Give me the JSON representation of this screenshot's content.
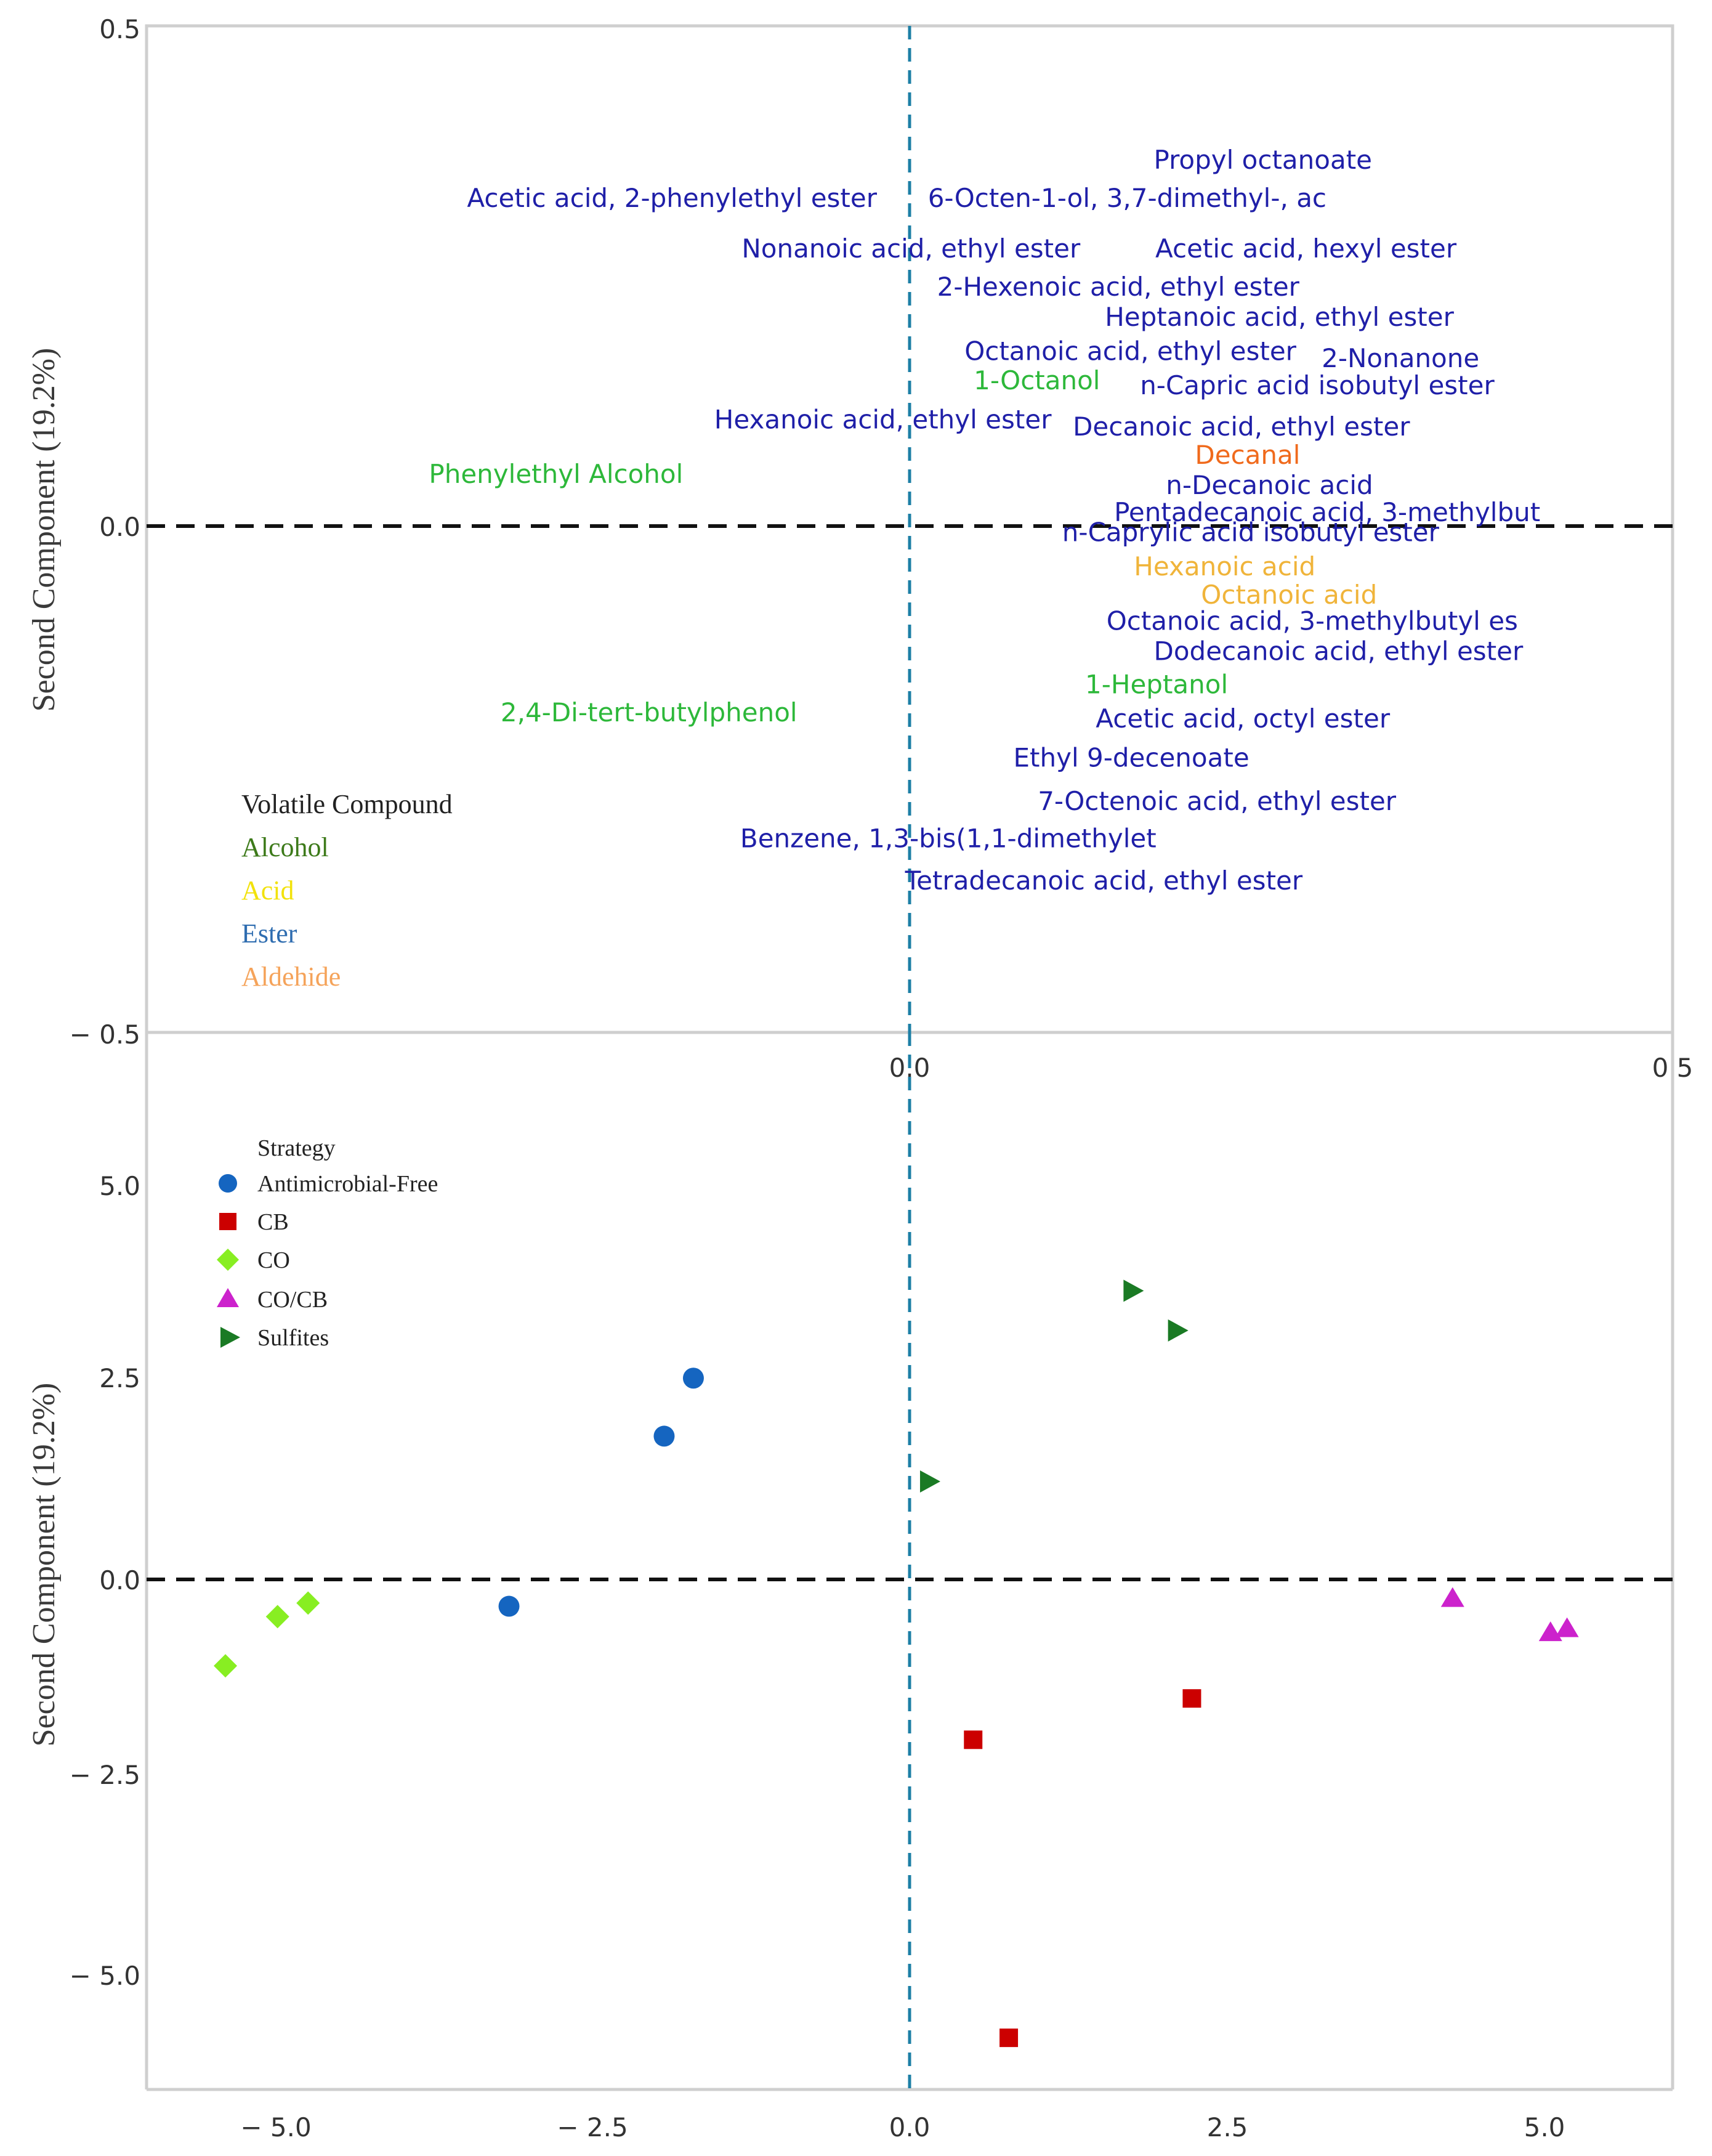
{
  "chart_data": [
    {
      "type": "scatter",
      "name": "loadings",
      "ylabel": "Second Component (19.2%)",
      "xlim": [
        -0.5,
        0.5
      ],
      "ylim": [
        -0.5,
        0.5
      ],
      "xticks": [
        "0.0",
        "0.5"
      ],
      "yticks": [
        "0.5",
        "0.0",
        "− 0.5"
      ],
      "legend_title": "Volatile Compound",
      "legend": [
        {
          "name": "Alcohol",
          "color": "#3d7a1a"
        },
        {
          "name": "Acid",
          "color": "#f2e20a"
        },
        {
          "name": "Ester",
          "color": "#2f6db0"
        },
        {
          "name": "Aldehide",
          "color": "#f5a35a"
        }
      ],
      "colors": {
        "Alcohol": "#2db83a",
        "Acid": "#f0b43a",
        "Ester": "#1f1fa8",
        "Aldehide": "#f06a1c"
      },
      "labels": [
        {
          "text": "Propyl octanoate",
          "class": "Ester",
          "x": 0.16,
          "y": 0.358
        },
        {
          "text": "Acetic acid, 2-phenylethyl ester",
          "class": "Ester",
          "x": -0.29,
          "y": 0.32
        },
        {
          "text": "6-Octen-1-ol, 3,7-dimethyl-, ac",
          "class": "Ester",
          "x": 0.012,
          "y": 0.32
        },
        {
          "text": "Nonanoic acid, ethyl ester",
          "class": "Ester",
          "x": -0.11,
          "y": 0.27
        },
        {
          "text": "Acetic acid, hexyl ester",
          "class": "Ester",
          "x": 0.161,
          "y": 0.27
        },
        {
          "text": "2-Hexenoic acid, ethyl ester",
          "class": "Ester",
          "x": 0.018,
          "y": 0.232
        },
        {
          "text": "Heptanoic acid, ethyl ester",
          "class": "Ester",
          "x": 0.128,
          "y": 0.202
        },
        {
          "text": "Octanoic acid, ethyl ester",
          "class": "Ester",
          "x": 0.036,
          "y": 0.168
        },
        {
          "text": "2-Nonanone",
          "class": "Ester",
          "x": 0.27,
          "y": 0.161
        },
        {
          "text": "1-Octanol",
          "class": "Alcohol",
          "x": 0.042,
          "y": 0.139
        },
        {
          "text": "n-Capric acid isobutyl ester",
          "class": "Ester",
          "x": 0.151,
          "y": 0.134
        },
        {
          "text": "Hexanoic acid, ethyl ester",
          "class": "Ester",
          "x": -0.128,
          "y": 0.1
        },
        {
          "text": "Decanoic acid, ethyl ester",
          "class": "Ester",
          "x": 0.107,
          "y": 0.093
        },
        {
          "text": "Decanal",
          "class": "Aldehide",
          "x": 0.187,
          "y": 0.065
        },
        {
          "text": "Phenylethyl Alcohol",
          "class": "Alcohol",
          "x": -0.315,
          "y": 0.046
        },
        {
          "text": "n-Decanoic acid",
          "class": "Ester",
          "x": 0.168,
          "y": 0.035
        },
        {
          "text": "Pentadecanoic acid, 3-methylbut",
          "class": "Ester",
          "x": 0.134,
          "y": 0.008
        },
        {
          "text": "n-Caprylic acid isobutyl ester",
          "class": "Ester",
          "x": 0.1,
          "y": -0.012
        },
        {
          "text": "Hexanoic acid",
          "class": "Acid",
          "x": 0.147,
          "y": -0.046
        },
        {
          "text": "Octanoic acid",
          "class": "Acid",
          "x": 0.191,
          "y": -0.074
        },
        {
          "text": "Octanoic acid, 3-methylbutyl es",
          "class": "Ester",
          "x": 0.129,
          "y": -0.1
        },
        {
          "text": "Dodecanoic acid, ethyl ester",
          "class": "Ester",
          "x": 0.16,
          "y": -0.13
        },
        {
          "text": "1-Heptanol",
          "class": "Alcohol",
          "x": 0.115,
          "y": -0.163
        },
        {
          "text": "2,4-Di-tert-butylphenol",
          "class": "Alcohol",
          "x": -0.268,
          "y": -0.191
        },
        {
          "text": "Acetic acid, octyl ester",
          "class": "Ester",
          "x": 0.122,
          "y": -0.197
        },
        {
          "text": "Ethyl 9-decenoate",
          "class": "Ester",
          "x": 0.068,
          "y": -0.236
        },
        {
          "text": "7-Octenoic acid, ethyl ester",
          "class": "Ester",
          "x": 0.084,
          "y": -0.279
        },
        {
          "text": "Benzene, 1,3-bis(1,1-dimethylet",
          "class": "Ester",
          "x": -0.111,
          "y": -0.316
        },
        {
          "text": "Tetradecanoic acid, ethyl ester",
          "class": "Ester",
          "x": -0.003,
          "y": -0.358
        }
      ]
    },
    {
      "type": "scatter",
      "name": "scores",
      "ylabel": "Second Component (19.2%)",
      "xlim": [
        -6.0,
        6.0
      ],
      "ylim": [
        -6.3,
        7.0
      ],
      "xticks": [
        "− 5.0",
        "− 2.5",
        "0.0",
        "2.5",
        "5.0"
      ],
      "yticks": [
        "5.0",
        "2.5",
        "0.0",
        "− 2.5",
        "− 5.0"
      ],
      "legend_title": "Strategy",
      "series": [
        {
          "name": "Antimicrobial-Free",
          "color": "#1565c0",
          "marker": "circle",
          "x": [
            -1.7,
            -1.93,
            -3.15
          ],
          "y": [
            2.65,
            1.92,
            -0.22
          ]
        },
        {
          "name": "CB",
          "color": "#cc0000",
          "marker": "square",
          "x": [
            2.22,
            0.5,
            0.78
          ],
          "y": [
            -1.38,
            -1.9,
            -5.65
          ]
        },
        {
          "name": "CO",
          "color": "#88ee22",
          "marker": "diamond",
          "x": [
            -4.73,
            -4.97,
            -5.38
          ],
          "y": [
            -0.18,
            -0.35,
            -0.97
          ]
        },
        {
          "name": "CO/CB",
          "color": "#cc22cc",
          "marker": "triangle",
          "x": [
            4.27,
            5.04,
            5.17
          ],
          "y": [
            -0.12,
            -0.55,
            -0.5
          ]
        },
        {
          "name": "Sulfites",
          "color": "#1a7a24",
          "marker": "triangle-right",
          "x": [
            1.75,
            2.1,
            0.15
          ],
          "y": [
            3.75,
            3.25,
            1.35
          ]
        }
      ]
    }
  ]
}
